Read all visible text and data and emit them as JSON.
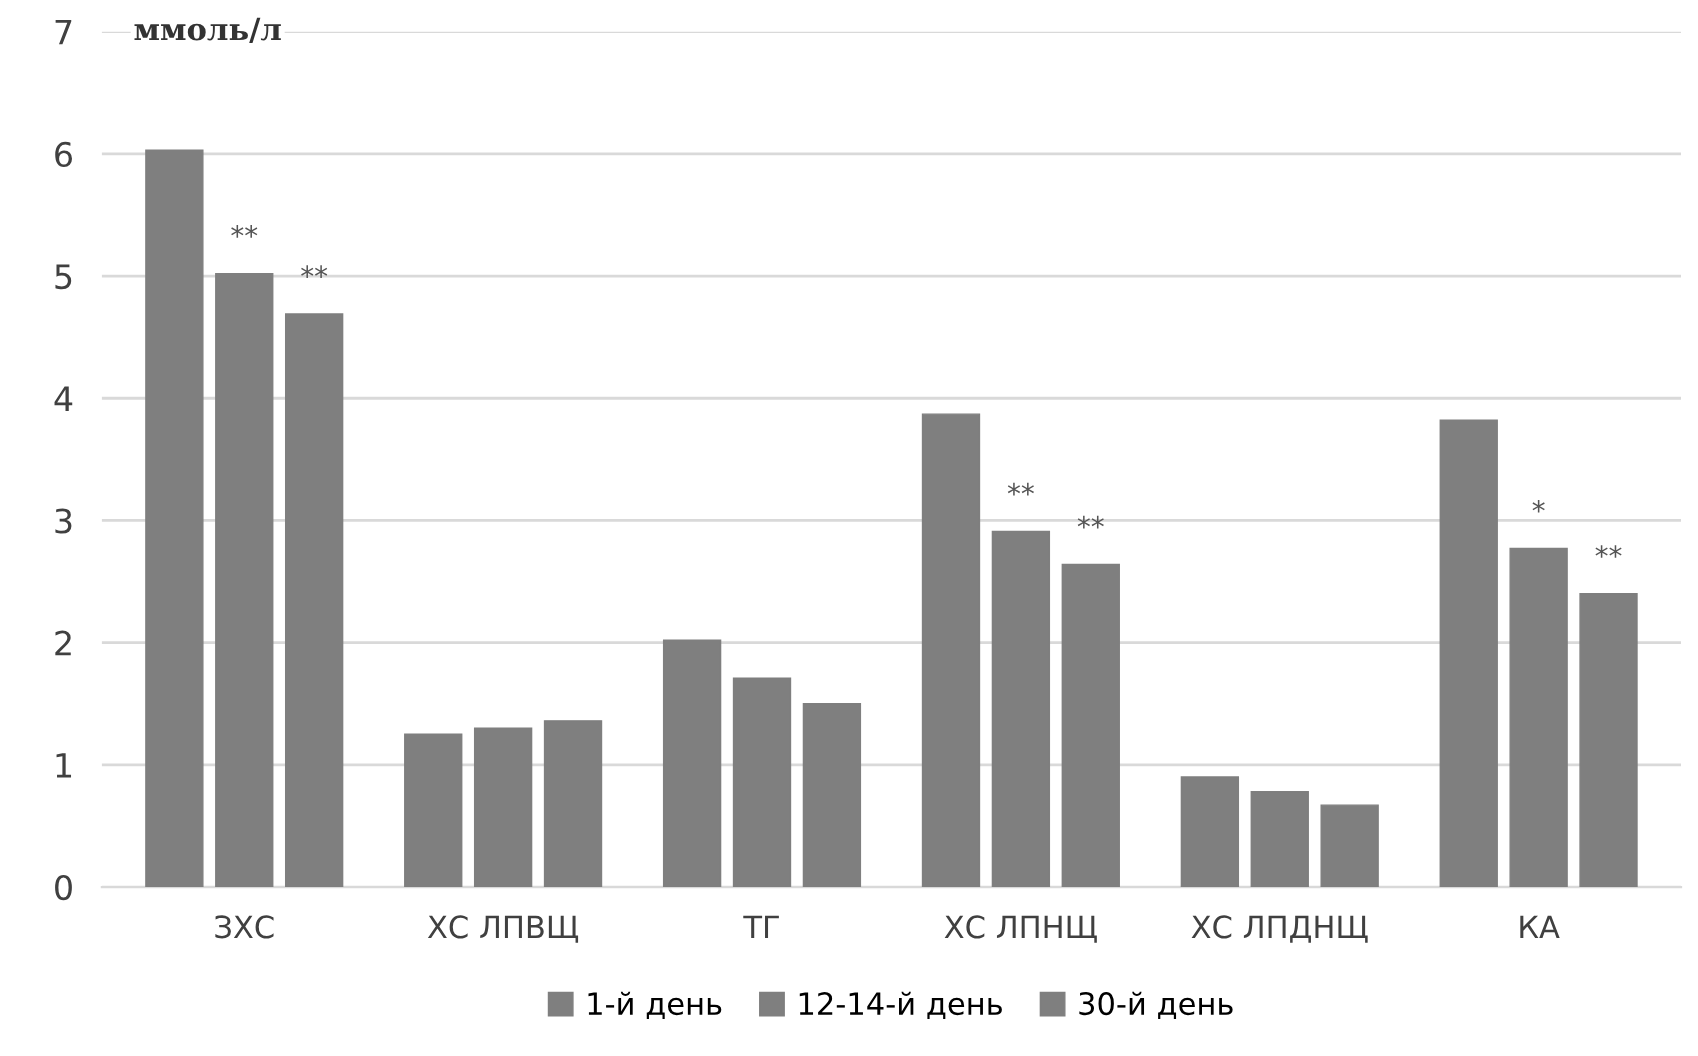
{
  "chart_data": {
    "type": "bar",
    "ylabel": "ммоль/л",
    "categories": [
      "ЗХС",
      "ХС ЛПВЩ",
      "ТГ",
      "ХС ЛПНЩ",
      "ХС ЛПДНЩ",
      "КА"
    ],
    "series": [
      {
        "name": "1-й день",
        "color": "#7f7f7f",
        "values": [
          6.03,
          1.25,
          2.02,
          3.87,
          0.9,
          3.82
        ]
      },
      {
        "name": "12-14-й день",
        "color": "#7f7f7f",
        "values": [
          5.02,
          1.3,
          1.71,
          2.91,
          0.78,
          2.77
        ],
        "value_labels": [
          "**",
          null,
          null,
          "**",
          null,
          "*"
        ]
      },
      {
        "name": "30-й день",
        "color": "#7f7f7f",
        "values": [
          4.69,
          1.36,
          1.5,
          2.64,
          0.67,
          2.4
        ],
        "value_labels": [
          "**",
          null,
          null,
          "**",
          null,
          "**"
        ]
      }
    ],
    "ylim": [
      0,
      7
    ],
    "yticks": [
      0,
      1,
      2,
      3,
      4,
      5,
      6,
      7
    ],
    "grid": "y",
    "legend": "bottom"
  }
}
